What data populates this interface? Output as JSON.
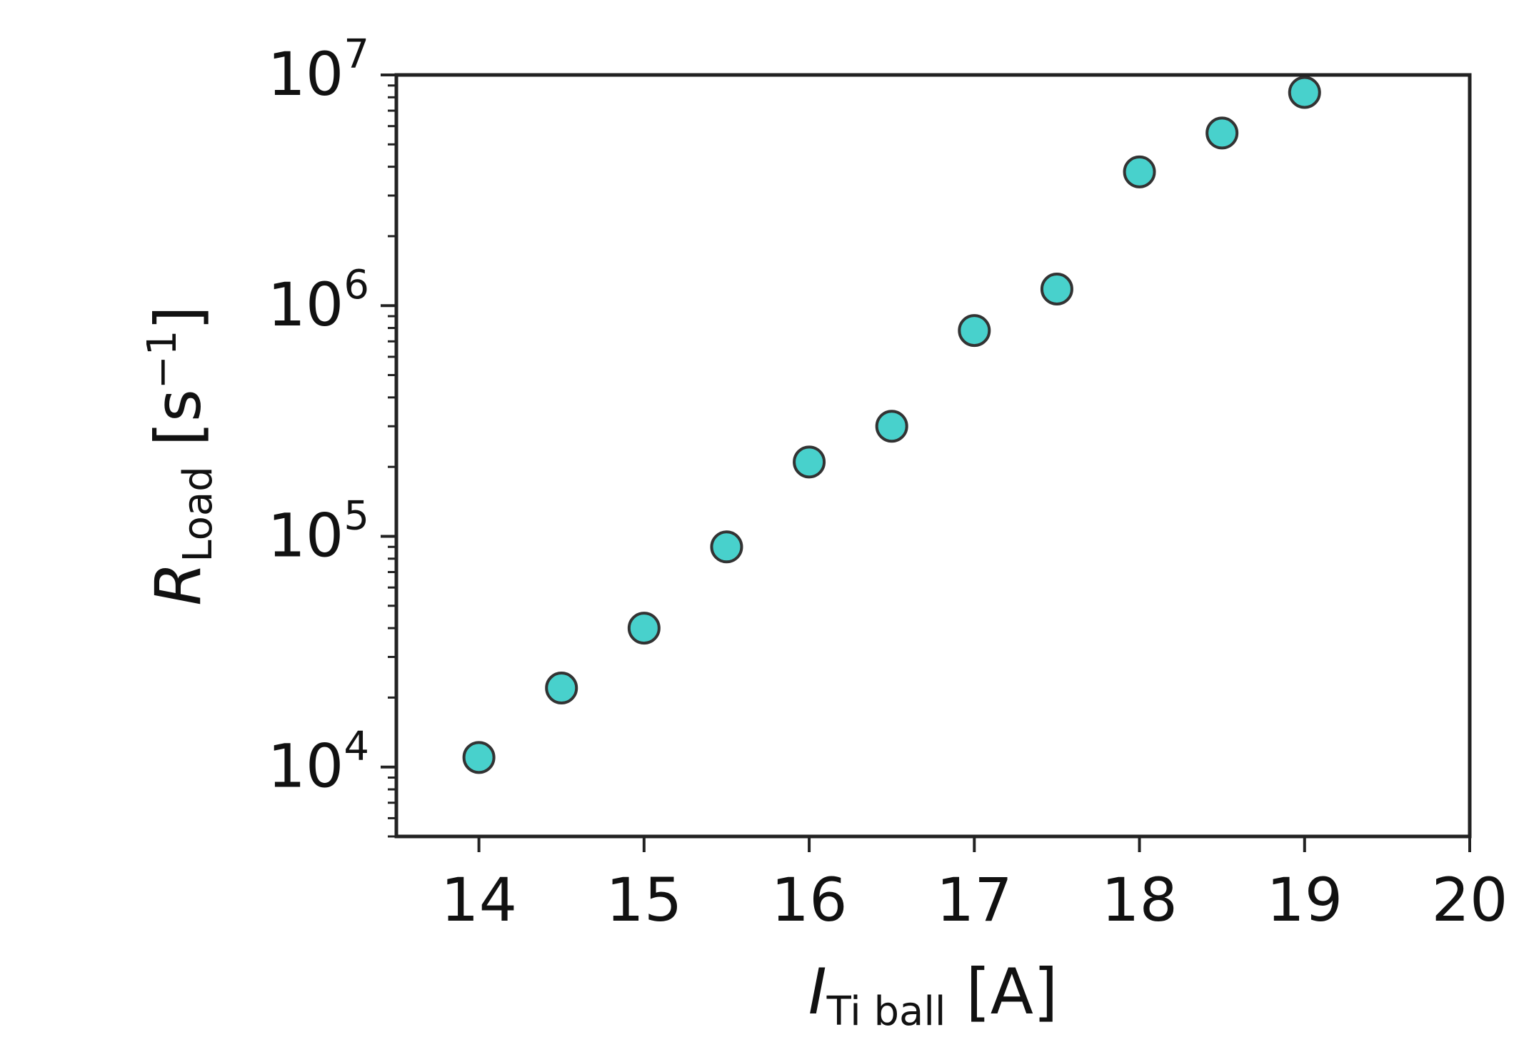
{
  "chart_data": {
    "type": "scatter",
    "x": [
      14,
      14.5,
      15,
      15.5,
      16,
      16.5,
      17,
      17.5,
      18,
      18.5,
      19
    ],
    "y": [
      11000,
      22000,
      40000,
      90000,
      210000,
      300000,
      780000,
      1180000,
      3800000,
      5600000,
      8400000
    ],
    "xlim": [
      13.5,
      20
    ],
    "ylim": [
      5000,
      10000000
    ],
    "yscale": "log",
    "grid": false,
    "marker_color": "#48d1cc",
    "marker_edge_color": "#333333",
    "xticks": [
      14,
      15,
      16,
      17,
      18,
      19,
      20
    ],
    "xtick_labels": [
      "14",
      "15",
      "16",
      "17",
      "18",
      "19",
      "20"
    ],
    "yticks": [
      10000,
      100000,
      1000000,
      10000000
    ],
    "ytick_labels": [
      {
        "base": "10",
        "exp": "4"
      },
      {
        "base": "10",
        "exp": "5"
      },
      {
        "base": "10",
        "exp": "6"
      },
      {
        "base": "10",
        "exp": "7"
      }
    ],
    "xlabel": {
      "symbol": "I",
      "subscript": "Ti ball",
      "unit": " [A]"
    },
    "ylabel": {
      "symbol": "R",
      "subscript": "Load",
      "unit_open": " [s",
      "unit_sup": "−1",
      "unit_close": "]"
    }
  }
}
